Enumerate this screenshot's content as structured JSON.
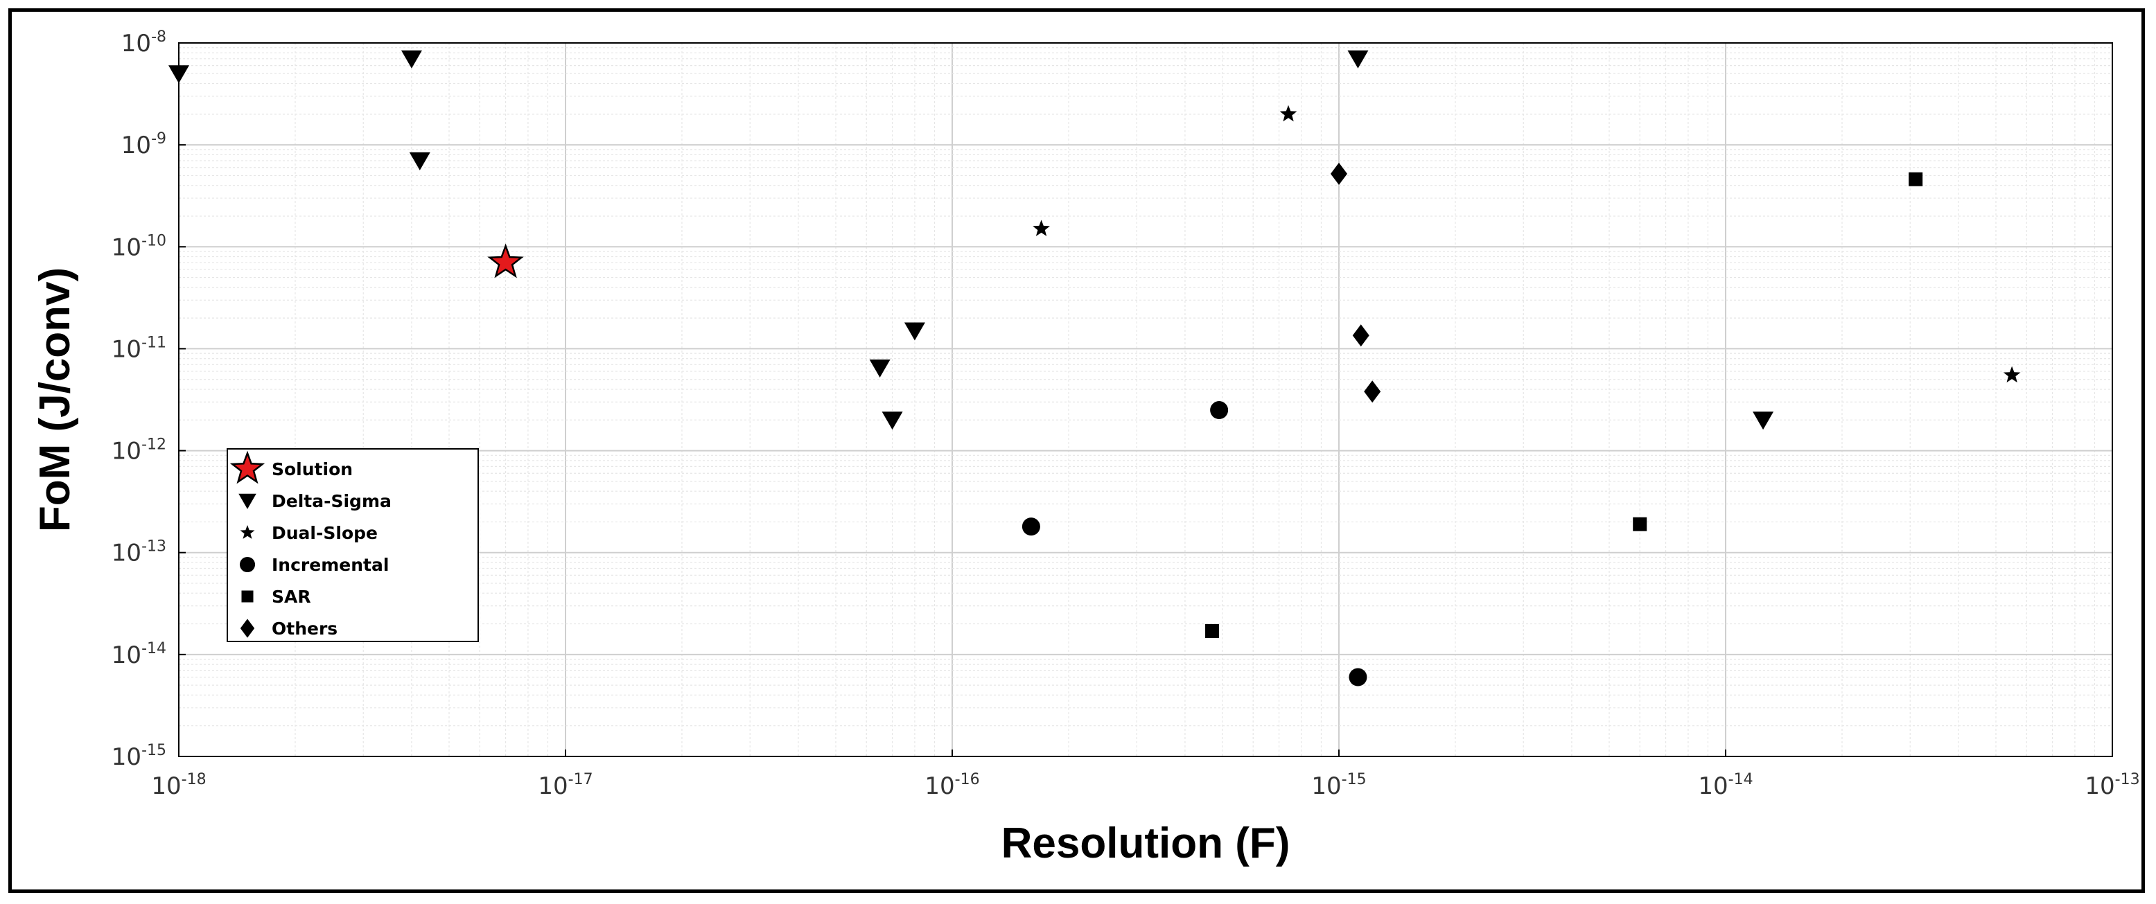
{
  "chart_data": {
    "type": "scatter",
    "xlabel": "Resolution (F)",
    "ylabel": "FoM (J/conv)",
    "xscale": "log",
    "yscale": "log",
    "xlim": [
      1e-18,
      1e-13
    ],
    "ylim": [
      1e-15,
      1e-08
    ],
    "grid": true,
    "minor_grid": true,
    "legend_position": "left-middle",
    "x_ticks": [
      {
        "base": "10",
        "exp": "-18"
      },
      {
        "base": "10",
        "exp": "-17"
      },
      {
        "base": "10",
        "exp": "-16"
      },
      {
        "base": "10",
        "exp": "-15"
      },
      {
        "base": "10",
        "exp": "-14"
      },
      {
        "base": "10",
        "exp": "-13"
      }
    ],
    "y_ticks": [
      {
        "base": "10",
        "exp": "-15"
      },
      {
        "base": "10",
        "exp": "-14"
      },
      {
        "base": "10",
        "exp": "-13"
      },
      {
        "base": "10",
        "exp": "-12"
      },
      {
        "base": "10",
        "exp": "-11"
      },
      {
        "base": "10",
        "exp": "-10"
      },
      {
        "base": "10",
        "exp": "-9"
      },
      {
        "base": "10",
        "exp": "-8"
      }
    ],
    "series": [
      {
        "name": "Solution",
        "marker": "star-large",
        "color": "#e41a1c",
        "points": [
          [
            7e-18,
            7e-11
          ]
        ]
      },
      {
        "name": "Delta-Sigma",
        "marker": "triangle-down",
        "color": "#000000",
        "points": [
          [
            1e-18,
            5e-09
          ],
          [
            4e-18,
            7e-09
          ],
          [
            4.2e-18,
            7e-10
          ],
          [
            6.5e-17,
            6.5e-12
          ],
          [
            7e-17,
            2e-12
          ],
          [
            8e-17,
            1.5e-11
          ],
          [
            1.12e-15,
            7e-09
          ],
          [
            1.25e-14,
            2e-12
          ]
        ]
      },
      {
        "name": "Dual-Slope",
        "marker": "star",
        "color": "#000000",
        "points": [
          [
            1.7e-16,
            1.5e-10
          ],
          [
            7.4e-16,
            2e-09
          ],
          [
            5.5e-14,
            5.5e-12
          ]
        ]
      },
      {
        "name": "Incremental",
        "marker": "circle",
        "color": "#000000",
        "points": [
          [
            1.6e-16,
            1.8e-13
          ],
          [
            4.9e-16,
            2.5e-12
          ],
          [
            1.12e-15,
            6e-15
          ]
        ]
      },
      {
        "name": "SAR",
        "marker": "square",
        "color": "#000000",
        "points": [
          [
            4.7e-16,
            1.7e-14
          ],
          [
            6e-15,
            1.9e-13
          ],
          [
            3.1e-14,
            4.6e-10
          ]
        ]
      },
      {
        "name": "Others",
        "marker": "diamond",
        "color": "#000000",
        "points": [
          [
            1e-15,
            5.2e-10
          ],
          [
            1.14e-15,
            1.35e-11
          ],
          [
            1.22e-15,
            3.8e-12
          ]
        ]
      }
    ]
  }
}
